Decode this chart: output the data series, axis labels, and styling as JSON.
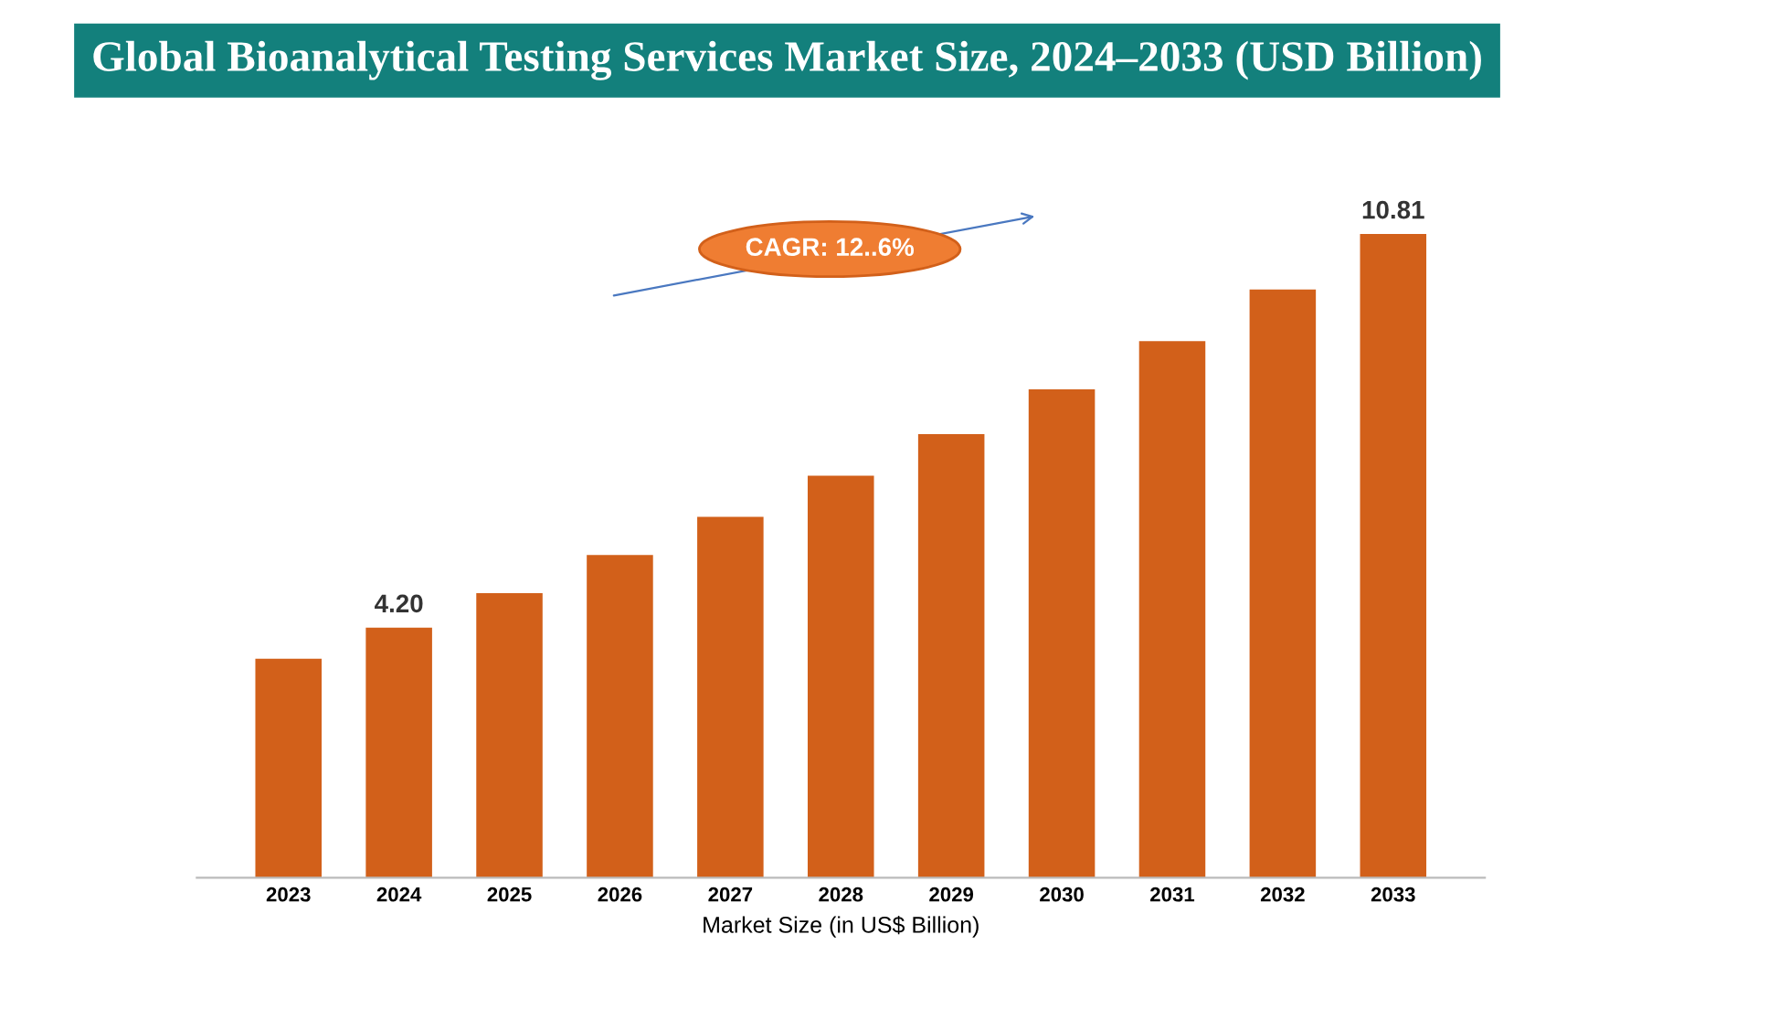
{
  "chart_data": {
    "type": "bar",
    "title": "Global Bioanalytical Testing Services Market Size, 2024–2033 (USD Billion)",
    "xlabel": "Market Size (in US$ Billion)",
    "categories": [
      "2023",
      "2024",
      "2025",
      "2026",
      "2027",
      "2028",
      "2029",
      "2030",
      "2031",
      "2032",
      "2033"
    ],
    "values": [
      3.68,
      4.2,
      4.78,
      5.42,
      6.06,
      6.75,
      7.45,
      8.2,
      9.01,
      9.88,
      10.81
    ],
    "value_labels": [
      null,
      "4.20",
      null,
      null,
      null,
      null,
      null,
      null,
      null,
      null,
      "10.81"
    ],
    "color": "#d2601a",
    "tick_labels": "x",
    "grid": false,
    "legend": false,
    "annotations": [
      "CAGR: 12..6%"
    ]
  }
}
